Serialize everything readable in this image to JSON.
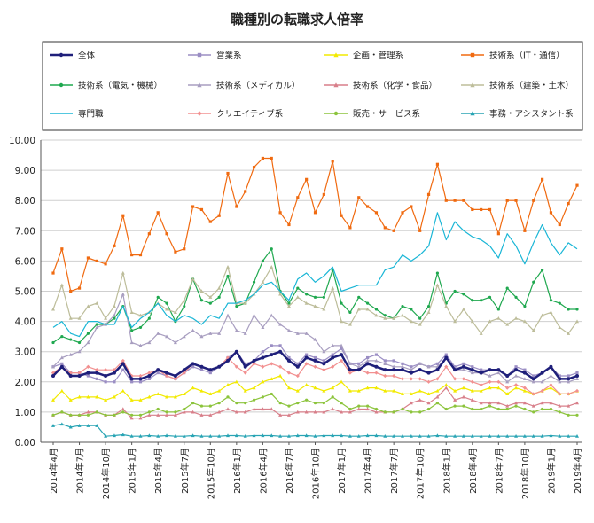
{
  "chart_data": {
    "type": "line",
    "title": "職種別の転職求人倍率",
    "xlabel": "",
    "ylabel": "",
    "ylim": [
      0,
      10
    ],
    "yticks": [
      "0.00",
      "1.00",
      "2.00",
      "3.00",
      "4.00",
      "5.00",
      "6.00",
      "7.00",
      "8.00",
      "9.00",
      "10.00"
    ],
    "grid": "horizontal",
    "legend_position": "top",
    "x_tick_labels": [
      "2014年4月",
      "2014年7月",
      "2014年10月",
      "2015年1月",
      "2015年4月",
      "2015年7月",
      "2015年10月",
      "2016年1月",
      "2016年4月",
      "2016年7月",
      "2016年10月",
      "2017年1月",
      "2017年4月",
      "2017年7月",
      "2017年10月",
      "2018年1月",
      "2018年4月",
      "2018年7月",
      "2018年10月",
      "2019年1月",
      "2019年4月"
    ],
    "x": [
      "2014-04",
      "2014-05",
      "2014-06",
      "2014-07",
      "2014-08",
      "2014-09",
      "2014-10",
      "2014-11",
      "2014-12",
      "2015-01",
      "2015-02",
      "2015-03",
      "2015-04",
      "2015-05",
      "2015-06",
      "2015-07",
      "2015-08",
      "2015-09",
      "2015-10",
      "2015-11",
      "2015-12",
      "2016-01",
      "2016-02",
      "2016-03",
      "2016-04",
      "2016-05",
      "2016-06",
      "2016-07",
      "2016-08",
      "2016-09",
      "2016-10",
      "2016-11",
      "2016-12",
      "2017-01",
      "2017-02",
      "2017-03",
      "2017-04",
      "2017-05",
      "2017-06",
      "2017-07",
      "2017-08",
      "2017-09",
      "2017-10",
      "2017-11",
      "2017-12",
      "2018-01",
      "2018-02",
      "2018-03",
      "2018-04",
      "2018-05",
      "2018-06",
      "2018-07",
      "2018-08",
      "2018-09",
      "2018-10",
      "2018-11",
      "2018-12",
      "2019-01",
      "2019-02",
      "2019-03",
      "2019-04"
    ],
    "series": [
      {
        "name": "全体",
        "color": "#1f1f7a",
        "marker": "circle",
        "width": 2.5,
        "values": [
          2.2,
          2.5,
          2.2,
          2.2,
          2.3,
          2.3,
          2.2,
          2.3,
          2.6,
          2.1,
          2.1,
          2.2,
          2.4,
          2.3,
          2.2,
          2.4,
          2.6,
          2.5,
          2.4,
          2.5,
          2.7,
          3.0,
          2.5,
          2.7,
          2.8,
          2.9,
          3.0,
          2.7,
          2.5,
          2.8,
          2.7,
          2.6,
          2.8,
          2.9,
          2.4,
          2.4,
          2.6,
          2.5,
          2.4,
          2.4,
          2.4,
          2.3,
          2.4,
          2.3,
          2.4,
          2.8,
          2.4,
          2.5,
          2.4,
          2.3,
          2.4,
          2.4,
          2.2,
          2.4,
          2.3,
          2.1,
          2.3,
          2.5,
          2.1,
          2.1,
          2.2
        ]
      },
      {
        "name": "営業系",
        "color": "#9b8ec4",
        "marker": "square",
        "values": [
          2.5,
          2.6,
          2.3,
          2.3,
          2.2,
          2.1,
          2.0,
          2.0,
          2.4,
          2.0,
          2.0,
          2.1,
          2.3,
          2.2,
          2.1,
          2.3,
          2.5,
          2.4,
          2.3,
          2.5,
          2.8,
          3.0,
          2.6,
          2.7,
          3.0,
          3.2,
          3.2,
          2.8,
          2.6,
          2.9,
          2.8,
          2.7,
          2.9,
          3.1,
          2.6,
          2.6,
          2.8,
          2.9,
          2.7,
          2.7,
          2.6,
          2.5,
          2.6,
          2.5,
          2.6,
          2.9,
          2.5,
          2.6,
          2.5,
          2.4,
          2.4,
          2.4,
          2.2,
          2.5,
          2.4,
          2.2,
          2.3,
          2.5,
          2.2,
          2.2,
          2.3
        ]
      },
      {
        "name": "企画・管理系",
        "color": "#f2ea00",
        "marker": "triangle",
        "values": [
          1.4,
          1.7,
          1.4,
          1.5,
          1.5,
          1.5,
          1.4,
          1.5,
          1.7,
          1.4,
          1.4,
          1.5,
          1.6,
          1.5,
          1.5,
          1.6,
          1.8,
          1.7,
          1.6,
          1.7,
          1.9,
          2.0,
          1.7,
          1.8,
          2.0,
          2.1,
          2.2,
          1.8,
          1.7,
          1.9,
          1.8,
          1.7,
          1.8,
          2.0,
          1.7,
          1.7,
          1.8,
          1.8,
          1.7,
          1.7,
          1.6,
          1.6,
          1.7,
          1.6,
          1.7,
          1.9,
          1.7,
          1.8,
          1.7,
          1.7,
          1.8,
          1.8,
          1.6,
          1.8,
          1.7,
          1.6,
          1.7,
          1.8,
          1.6,
          1.6,
          1.7
        ]
      },
      {
        "name": "技術系（IT・通信）",
        "color": "#f06a10",
        "marker": "square",
        "values": [
          5.6,
          6.4,
          5.0,
          5.1,
          6.1,
          6.0,
          5.9,
          6.5,
          7.5,
          6.2,
          6.2,
          6.9,
          7.6,
          6.9,
          6.3,
          6.4,
          7.8,
          7.7,
          7.3,
          7.5,
          8.9,
          7.8,
          8.3,
          9.1,
          9.4,
          9.4,
          7.6,
          7.2,
          8.1,
          8.7,
          7.6,
          8.2,
          9.3,
          7.5,
          7.1,
          8.1,
          7.8,
          7.6,
          7.1,
          7.0,
          7.6,
          7.8,
          7.0,
          8.2,
          9.2,
          8.0,
          8.0,
          8.0,
          7.7,
          7.7,
          7.7,
          6.9,
          8.0,
          8.0,
          7.0,
          8.0,
          8.7,
          7.6,
          7.2,
          7.9,
          8.5
        ]
      },
      {
        "name": "技術系（電気・機械）",
        "color": "#1fa84f",
        "marker": "circle",
        "values": [
          3.3,
          3.5,
          3.4,
          3.3,
          3.6,
          3.9,
          3.9,
          4.1,
          4.5,
          3.7,
          3.8,
          4.1,
          4.8,
          4.6,
          4.0,
          4.5,
          5.4,
          4.7,
          4.6,
          4.8,
          5.5,
          4.5,
          4.6,
          5.3,
          6.0,
          6.4,
          5.0,
          4.6,
          5.1,
          4.9,
          4.8,
          4.8,
          5.7,
          4.6,
          4.3,
          4.8,
          4.6,
          4.4,
          4.2,
          4.1,
          4.5,
          4.4,
          4.1,
          4.5,
          5.6,
          4.6,
          5.0,
          4.9,
          4.7,
          4.7,
          4.8,
          4.4,
          5.1,
          4.8,
          4.5,
          5.3,
          5.7,
          4.7,
          4.6,
          4.4,
          4.4
        ]
      },
      {
        "name": "技術系（メディカル）",
        "color": "#a89ec0",
        "marker": "triangle",
        "values": [
          2.5,
          2.8,
          2.9,
          3.0,
          3.3,
          3.8,
          3.9,
          4.2,
          4.9,
          3.3,
          3.2,
          3.3,
          3.6,
          3.5,
          3.3,
          3.5,
          3.7,
          3.5,
          3.6,
          3.6,
          4.2,
          3.7,
          3.6,
          4.2,
          3.8,
          4.2,
          3.9,
          3.7,
          3.6,
          3.6,
          3.4,
          3.0,
          3.2,
          3.2,
          2.6,
          2.5,
          2.7,
          2.7,
          2.6,
          2.5,
          2.5,
          2.4,
          2.6,
          2.5,
          2.5,
          2.8,
          2.4,
          2.4,
          2.3,
          2.3,
          2.2,
          2.3,
          2.0,
          2.2,
          2.1,
          2.0,
          2.0,
          2.2,
          2.0,
          2.0,
          2.1
        ]
      },
      {
        "name": "技術系（化学・食品）",
        "color": "#d87f8a",
        "marker": "triangle",
        "values": [
          0.9,
          1.0,
          0.9,
          0.9,
          1.0,
          1.0,
          0.9,
          0.9,
          1.1,
          0.8,
          0.8,
          0.9,
          0.9,
          0.9,
          0.9,
          1.0,
          1.0,
          0.9,
          0.9,
          1.0,
          1.1,
          1.0,
          1.0,
          1.1,
          1.1,
          1.1,
          0.9,
          0.9,
          1.0,
          1.0,
          1.0,
          1.0,
          1.1,
          1.0,
          1.0,
          1.1,
          1.1,
          1.0,
          1.0,
          1.0,
          1.1,
          1.3,
          1.4,
          1.3,
          1.5,
          1.8,
          1.4,
          1.5,
          1.4,
          1.3,
          1.3,
          1.3,
          1.2,
          1.3,
          1.3,
          1.2,
          1.3,
          1.3,
          1.2,
          1.2,
          1.3
        ]
      },
      {
        "name": "技術系（建築・土木）",
        "color": "#bdbd9a",
        "marker": "triangle",
        "values": [
          4.4,
          5.2,
          4.1,
          4.1,
          4.5,
          4.6,
          4.1,
          4.5,
          5.6,
          4.3,
          4.2,
          4.3,
          4.6,
          4.4,
          4.3,
          4.7,
          5.4,
          5.0,
          4.8,
          5.1,
          5.8,
          4.6,
          4.6,
          4.9,
          5.3,
          5.8,
          4.9,
          4.5,
          4.8,
          4.6,
          4.5,
          4.4,
          5.1,
          4.0,
          3.9,
          4.4,
          4.4,
          4.2,
          4.1,
          4.1,
          4.2,
          4.0,
          3.9,
          4.3,
          5.2,
          4.5,
          4.0,
          4.4,
          4.0,
          3.6,
          4.0,
          4.1,
          3.9,
          4.1,
          4.0,
          3.7,
          4.2,
          4.3,
          3.8,
          3.6,
          4.0
        ]
      },
      {
        "name": "専門職",
        "color": "#1ab6d6",
        "marker": "none",
        "values": [
          3.8,
          4.0,
          3.6,
          3.5,
          4.0,
          4.0,
          3.9,
          3.9,
          4.5,
          3.8,
          4.1,
          4.3,
          4.6,
          4.2,
          4.0,
          4.2,
          4.1,
          3.9,
          4.2,
          4.1,
          4.6,
          4.6,
          4.7,
          4.9,
          5.2,
          5.3,
          5.0,
          4.7,
          5.4,
          5.6,
          5.3,
          5.5,
          5.8,
          5.0,
          5.1,
          5.2,
          5.2,
          5.2,
          5.7,
          5.8,
          6.2,
          6.0,
          6.2,
          6.5,
          7.6,
          6.7,
          7.3,
          7.0,
          6.8,
          6.7,
          6.5,
          6.1,
          6.9,
          6.5,
          5.9,
          6.6,
          7.2,
          6.6,
          6.2,
          6.6,
          6.4
        ]
      },
      {
        "name": "クリエイティブ系",
        "color": "#f29090",
        "marker": "diamond",
        "values": [
          2.3,
          2.5,
          2.3,
          2.3,
          2.5,
          2.4,
          2.4,
          2.4,
          2.7,
          2.2,
          2.2,
          2.3,
          2.4,
          2.2,
          2.1,
          2.3,
          2.6,
          2.5,
          2.4,
          2.5,
          2.8,
          2.5,
          2.3,
          2.6,
          2.5,
          2.6,
          2.5,
          2.3,
          2.2,
          2.6,
          2.5,
          2.4,
          2.5,
          2.7,
          2.3,
          2.4,
          2.3,
          2.3,
          2.2,
          2.2,
          2.1,
          2.1,
          2.1,
          2.0,
          2.1,
          2.5,
          2.1,
          2.1,
          2.0,
          1.9,
          2.0,
          2.0,
          1.8,
          1.9,
          1.8,
          1.6,
          1.7,
          1.9,
          1.6,
          1.6,
          1.7
        ]
      },
      {
        "name": "販売・サービス系",
        "color": "#8cc43c",
        "marker": "circle",
        "values": [
          0.9,
          1.0,
          0.9,
          0.9,
          0.9,
          1.0,
          0.9,
          0.9,
          1.0,
          0.9,
          0.9,
          1.0,
          1.1,
          1.0,
          1.0,
          1.1,
          1.3,
          1.2,
          1.2,
          1.3,
          1.5,
          1.3,
          1.3,
          1.4,
          1.5,
          1.6,
          1.3,
          1.2,
          1.3,
          1.4,
          1.3,
          1.3,
          1.5,
          1.3,
          1.1,
          1.2,
          1.2,
          1.1,
          1.0,
          1.0,
          1.1,
          1.0,
          1.0,
          1.1,
          1.3,
          1.1,
          1.2,
          1.2,
          1.1,
          1.1,
          1.2,
          1.1,
          1.1,
          1.2,
          1.1,
          1.0,
          1.1,
          1.1,
          1.0,
          0.9,
          0.9
        ]
      },
      {
        "name": "事務・アシスタント系",
        "color": "#28a4b4",
        "marker": "triangle",
        "values": [
          0.55,
          0.6,
          0.5,
          0.55,
          0.55,
          0.55,
          0.2,
          0.22,
          0.25,
          0.2,
          0.2,
          0.22,
          0.2,
          0.22,
          0.2,
          0.2,
          0.22,
          0.2,
          0.2,
          0.2,
          0.22,
          0.22,
          0.2,
          0.22,
          0.22,
          0.22,
          0.2,
          0.2,
          0.22,
          0.22,
          0.2,
          0.22,
          0.22,
          0.22,
          0.2,
          0.2,
          0.22,
          0.22,
          0.2,
          0.2,
          0.2,
          0.2,
          0.2,
          0.2,
          0.22,
          0.2,
          0.2,
          0.2,
          0.2,
          0.2,
          0.2,
          0.2,
          0.2,
          0.2,
          0.2,
          0.2,
          0.2,
          0.22,
          0.2,
          0.2,
          0.2
        ]
      }
    ]
  }
}
